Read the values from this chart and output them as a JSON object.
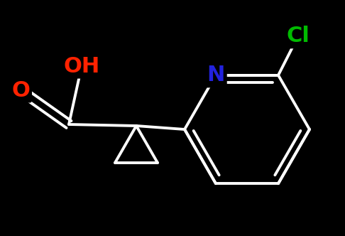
{
  "bg_color": "#000000",
  "bond_color": "#ffffff",
  "O_color": "#ff2200",
  "N_color": "#2222dd",
  "Cl_color": "#00bb00",
  "bond_width": 2.8,
  "font_size_atom": 22,
  "fig_width": 4.86,
  "fig_height": 3.32,
  "dpi": 100,
  "xlim": [
    0,
    486
  ],
  "ylim": [
    0,
    332
  ]
}
